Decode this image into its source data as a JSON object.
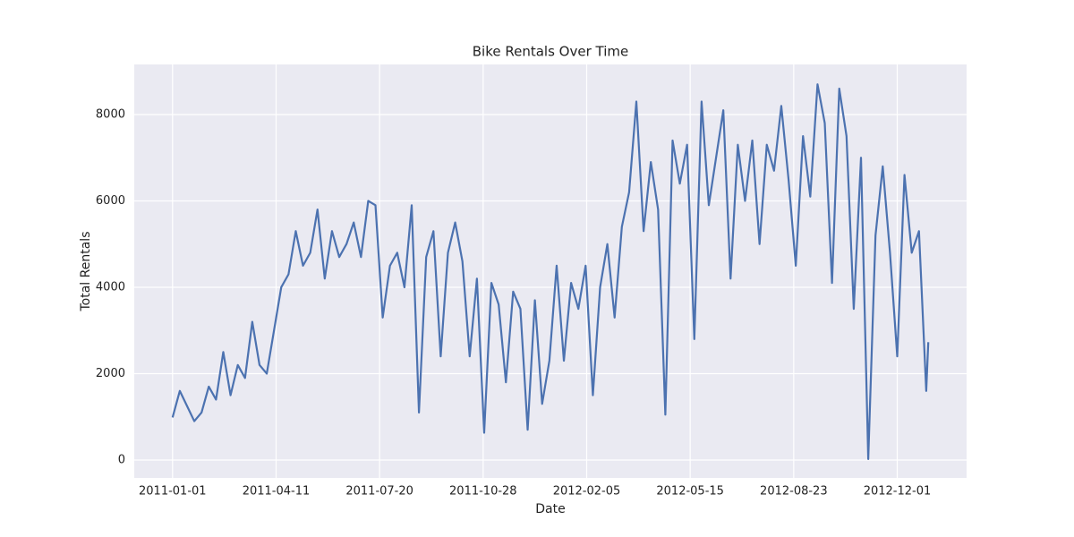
{
  "chart_data": {
    "type": "line",
    "title": "Bike Rentals Over Time",
    "x_label": "Date",
    "y_label": "Total Rentals",
    "x": [
      "2011-01-01",
      "2011-01-08",
      "2011-01-15",
      "2011-01-22",
      "2011-01-29",
      "2011-02-05",
      "2011-02-12",
      "2011-02-19",
      "2011-02-26",
      "2011-03-05",
      "2011-03-12",
      "2011-03-19",
      "2011-03-26",
      "2011-04-02",
      "2011-04-09",
      "2011-04-16",
      "2011-04-23",
      "2011-04-30",
      "2011-05-07",
      "2011-05-14",
      "2011-05-21",
      "2011-05-28",
      "2011-06-04",
      "2011-06-11",
      "2011-06-18",
      "2011-06-25",
      "2011-07-02",
      "2011-07-09",
      "2011-07-16",
      "2011-07-23",
      "2011-07-30",
      "2011-08-06",
      "2011-08-13",
      "2011-08-20",
      "2011-08-27",
      "2011-09-03",
      "2011-09-10",
      "2011-09-17",
      "2011-09-24",
      "2011-10-01",
      "2011-10-08",
      "2011-10-15",
      "2011-10-22",
      "2011-10-29",
      "2011-11-05",
      "2011-11-12",
      "2011-11-19",
      "2011-11-26",
      "2011-12-03",
      "2011-12-10",
      "2011-12-17",
      "2011-12-24",
      "2011-12-31",
      "2012-01-07",
      "2012-01-14",
      "2012-01-21",
      "2012-01-28",
      "2012-02-04",
      "2012-02-11",
      "2012-02-18",
      "2012-02-25",
      "2012-03-03",
      "2012-03-10",
      "2012-03-17",
      "2012-03-24",
      "2012-03-31",
      "2012-04-07",
      "2012-04-14",
      "2012-04-21",
      "2012-04-28",
      "2012-05-05",
      "2012-05-12",
      "2012-05-19",
      "2012-05-26",
      "2012-06-02",
      "2012-06-09",
      "2012-06-16",
      "2012-06-23",
      "2012-06-30",
      "2012-07-07",
      "2012-07-14",
      "2012-07-21",
      "2012-07-28",
      "2012-08-04",
      "2012-08-11",
      "2012-08-18",
      "2012-08-25",
      "2012-09-01",
      "2012-09-08",
      "2012-09-15",
      "2012-09-22",
      "2012-09-29",
      "2012-10-06",
      "2012-10-13",
      "2012-10-20",
      "2012-10-27",
      "2012-11-03",
      "2012-11-10",
      "2012-11-17",
      "2012-11-24",
      "2012-12-01",
      "2012-12-08",
      "2012-12-15",
      "2012-12-22",
      "2012-12-29",
      "2012-12-31"
    ],
    "series": [
      {
        "color": "#4c72b0",
        "values": [
          985,
          1600,
          1250,
          900,
          1100,
          1700,
          1400,
          2500,
          1500,
          2200,
          1900,
          3200,
          2200,
          2000,
          3000,
          4000,
          4300,
          5300,
          4500,
          4800,
          5800,
          4200,
          5300,
          4700,
          5000,
          5500,
          4700,
          6000,
          5900,
          3300,
          4500,
          4800,
          4000,
          5900,
          1100,
          4700,
          5300,
          2400,
          4800,
          5500,
          4600,
          2400,
          4200,
          630,
          4100,
          3600,
          1800,
          3900,
          3500,
          700,
          3700,
          1300,
          2300,
          4500,
          2300,
          4100,
          3500,
          4500,
          1500,
          4000,
          5000,
          3300,
          5400,
          6200,
          8300,
          5300,
          6900,
          5800,
          1050,
          7400,
          6400,
          7300,
          2800,
          8300,
          5900,
          7000,
          8100,
          4200,
          7300,
          6000,
          7400,
          5000,
          7300,
          6700,
          8200,
          6500,
          4500,
          7500,
          6100,
          8700,
          7800,
          4100,
          8600,
          7500,
          3500,
          7000,
          22,
          5200,
          6800,
          4800,
          2400,
          6600,
          4800,
          5300,
          1600,
          2729
        ]
      }
    ],
    "xlim": [
      "2010-11-25",
      "2013-02-06"
    ],
    "xticks": [
      "2011-01-01",
      "2011-04-11",
      "2011-07-20",
      "2011-10-28",
      "2012-02-05",
      "2012-05-15",
      "2012-08-23",
      "2012-12-01"
    ],
    "ylim": [
      -415,
      9160
    ],
    "yticks": [
      0,
      2000,
      4000,
      6000,
      8000
    ],
    "grid": true
  }
}
